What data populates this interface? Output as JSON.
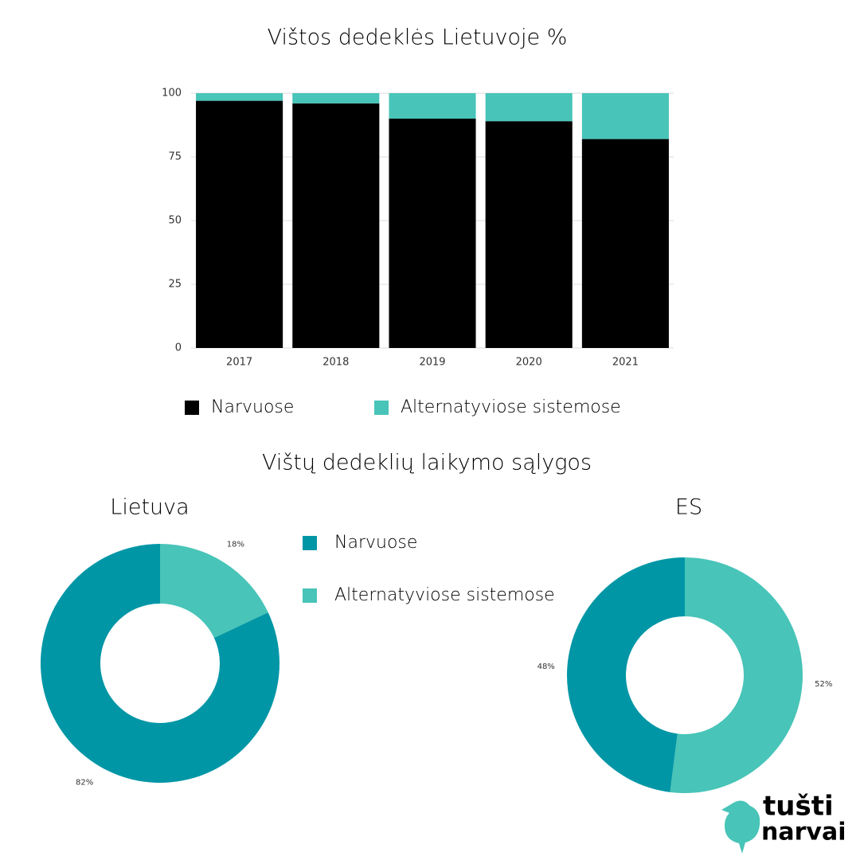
{
  "chart_data": [
    {
      "type": "stacked_bar",
      "title": "Vištos dedeklės Lietuvoje %",
      "categories": [
        "2017",
        "2018",
        "2019",
        "2020",
        "2021"
      ],
      "series": [
        {
          "name": "Narvuose",
          "color": "#000000",
          "values": [
            97,
            96,
            90,
            89,
            82
          ]
        },
        {
          "name": "Alternatyviose sistemose",
          "color": "#48c4b8",
          "values": [
            3,
            4,
            10,
            11,
            18
          ]
        }
      ],
      "ylim": [
        0,
        100
      ],
      "yticks": [
        0,
        25,
        50,
        75,
        100
      ],
      "grid": true
    },
    {
      "type": "donut",
      "title": "Lietuva",
      "categories": [
        "Alternatyviose sistemose",
        "Narvuose"
      ],
      "colors": [
        "#48c4b8",
        "#0096a6"
      ],
      "values": [
        18,
        82
      ],
      "value_labels": [
        "18%",
        "82%"
      ]
    },
    {
      "type": "donut",
      "title": "ES",
      "colors": [
        "#48c4b8",
        "#0096a6"
      ],
      "values": [
        52,
        48
      ],
      "value_labels": [
        "52%",
        "48%"
      ]
    }
  ],
  "section_title": "Vištų dedeklių laikymo sąlygos",
  "logo": {
    "line1": "tušti",
    "line2": "narvai"
  }
}
